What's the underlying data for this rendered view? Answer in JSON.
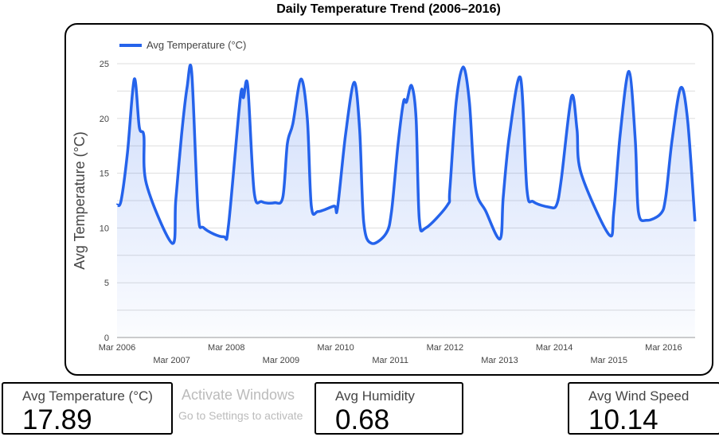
{
  "chart_data": {
    "type": "area",
    "title": "Daily Temperature Trend (2006–2016)",
    "xlabel": "",
    "ylabel": "Avg Temperature (°C)",
    "ylim": [
      0,
      25
    ],
    "yticks": [
      "0",
      "5",
      "10",
      "15",
      "20",
      "25"
    ],
    "xticks": [
      "Mar 2006",
      "Mar 2007",
      "Mar 2008",
      "Mar 2009",
      "Mar 2010",
      "Mar 2011",
      "Mar 2012",
      "Mar 2013",
      "Mar 2014",
      "Mar 2015",
      "Mar 2016"
    ],
    "grid": true,
    "legend": "top-left",
    "color": "#2563eb",
    "series": [
      {
        "name": "Avg Temperature (°C)",
        "points": [
          [
            "2006-03-01",
            12.1
          ],
          [
            "2006-03-28",
            12.5
          ],
          [
            "2006-05-10",
            16.9
          ],
          [
            "2006-06-25",
            23.6
          ],
          [
            "2006-07-28",
            19.2
          ],
          [
            "2006-08-28",
            18.4
          ],
          [
            "2006-09-15",
            14.0
          ],
          [
            "2007-03-04",
            8.6
          ],
          [
            "2007-03-28",
            12.5
          ],
          [
            "2007-05-06",
            18.5
          ],
          [
            "2007-06-12",
            22.8
          ],
          [
            "2007-07-13",
            24.2
          ],
          [
            "2007-08-25",
            11.5
          ],
          [
            "2007-10-03",
            10.0
          ],
          [
            "2008-02-12",
            9.2
          ],
          [
            "2008-03-15",
            10.2
          ],
          [
            "2008-06-03",
            21.9
          ],
          [
            "2008-06-24",
            21.9
          ],
          [
            "2008-07-22",
            23.0
          ],
          [
            "2008-09-04",
            13.3
          ],
          [
            "2008-10-25",
            12.4
          ],
          [
            "2009-01-18",
            12.3
          ],
          [
            "2009-03-13",
            12.8
          ],
          [
            "2009-04-13",
            17.7
          ],
          [
            "2009-05-19",
            19.5
          ],
          [
            "2009-07-13",
            23.6
          ],
          [
            "2009-08-25",
            19.9
          ],
          [
            "2009-09-21",
            12.0
          ],
          [
            "2009-11-06",
            11.5
          ],
          [
            "2010-02-21",
            12.0
          ],
          [
            "2010-03-13",
            11.8
          ],
          [
            "2010-05-06",
            18.5
          ],
          [
            "2010-07-03",
            23.3
          ],
          [
            "2010-08-09",
            19.0
          ],
          [
            "2010-09-06",
            10.5
          ],
          [
            "2010-10-28",
            8.6
          ],
          [
            "2011-02-03",
            9.5
          ],
          [
            "2011-03-09",
            11.5
          ],
          [
            "2011-04-21",
            17.5
          ],
          [
            "2011-05-28",
            21.5
          ],
          [
            "2011-06-18",
            21.5
          ],
          [
            "2011-07-21",
            23.0
          ],
          [
            "2011-08-21",
            20.0
          ],
          [
            "2011-09-12",
            10.8
          ],
          [
            "2011-10-24",
            10.0
          ],
          [
            "2012-03-18",
            12.1
          ],
          [
            "2012-04-03",
            13.5
          ],
          [
            "2012-05-15",
            21.5
          ],
          [
            "2012-07-01",
            24.7
          ],
          [
            "2012-08-12",
            21.5
          ],
          [
            "2012-09-21",
            13.8
          ],
          [
            "2012-12-01",
            11.5
          ],
          [
            "2013-03-04",
            9.0
          ],
          [
            "2013-03-25",
            12.8
          ],
          [
            "2013-05-06",
            18.5
          ],
          [
            "2013-07-19",
            23.7
          ],
          [
            "2013-09-01",
            13.5
          ],
          [
            "2013-10-13",
            12.4
          ],
          [
            "2014-01-28",
            11.9
          ],
          [
            "2014-03-16",
            12.1
          ],
          [
            "2014-04-18",
            14.5
          ],
          [
            "2014-06-25",
            22.0
          ],
          [
            "2014-07-31",
            19.0
          ],
          [
            "2014-08-28",
            15.0
          ],
          [
            "2015-03-01",
            9.4
          ],
          [
            "2015-04-03",
            11.5
          ],
          [
            "2015-05-15",
            18.5
          ],
          [
            "2015-07-13",
            24.3
          ],
          [
            "2015-08-25",
            18.0
          ],
          [
            "2015-09-15",
            11.5
          ],
          [
            "2015-11-09",
            10.7
          ],
          [
            "2016-02-12",
            11.3
          ],
          [
            "2016-03-15",
            12.8
          ],
          [
            "2016-04-27",
            18.0
          ],
          [
            "2016-06-24",
            22.8
          ],
          [
            "2016-08-09",
            19.9
          ],
          [
            "2016-09-28",
            10.6
          ]
        ]
      }
    ]
  },
  "cards": [
    {
      "label": "Avg Temperature (°C)",
      "value": "17.89"
    },
    {
      "label": "Avg Humidity",
      "value": "0.68"
    },
    {
      "label": "Avg Wind Speed",
      "value": "10.14"
    }
  ],
  "watermark": {
    "line1": "Activate Windows",
    "line2": "Go to Settings to activate"
  }
}
